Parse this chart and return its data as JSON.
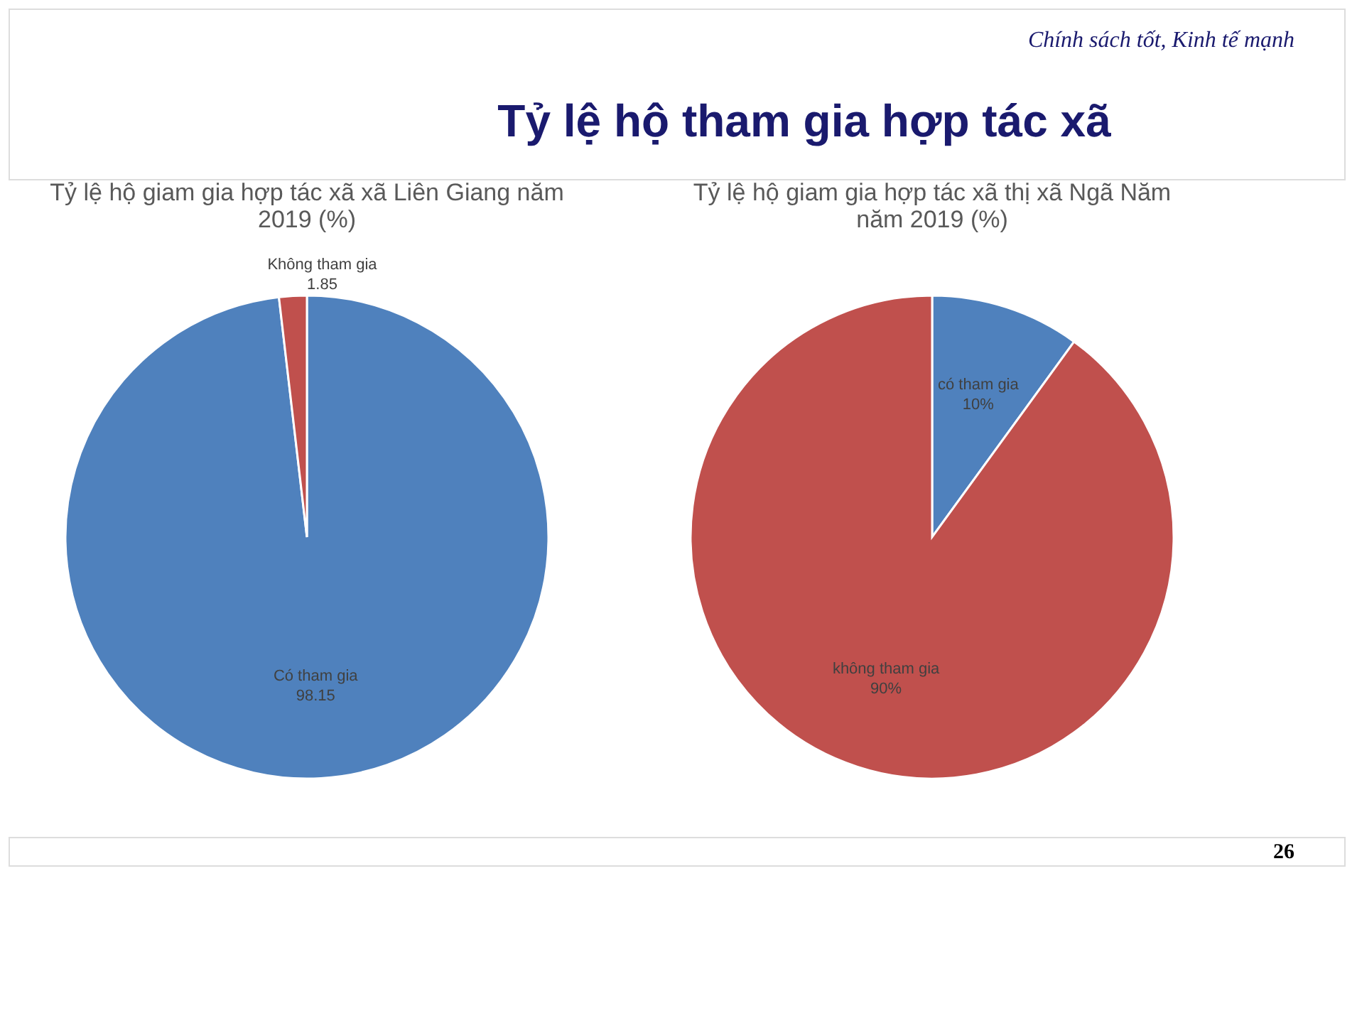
{
  "chart_data": [
    {
      "type": "other",
      "title": "Tỷ lệ hộ tham gia hợp tác xã",
      "annotations": [
        "Chính sách tốt, Kinh tế mạnh",
        "26"
      ]
    },
    {
      "type": "pie",
      "title": "Tỷ lệ hộ giam gia hợp tác xã xã Liên Giang năm 2019 (%)",
      "categories": [
        "Có tham gia",
        "Không tham gia"
      ],
      "values": [
        98.15,
        1.85
      ],
      "colors": [
        "#4f81bd",
        "#c0504d"
      ],
      "value_labels": [
        "98.15",
        "1.85"
      ],
      "legend": false
    },
    {
      "type": "pie",
      "title": "Tỷ lệ hộ giam gia hợp tác xã thị xã Ngã Năm năm 2019 (%)",
      "categories": [
        "có tham gia",
        "không tham gia"
      ],
      "values": [
        10,
        90
      ],
      "colors": [
        "#4f81bd",
        "#c0504d"
      ],
      "value_labels": [
        "10%",
        "90%"
      ],
      "legend": false
    }
  ]
}
